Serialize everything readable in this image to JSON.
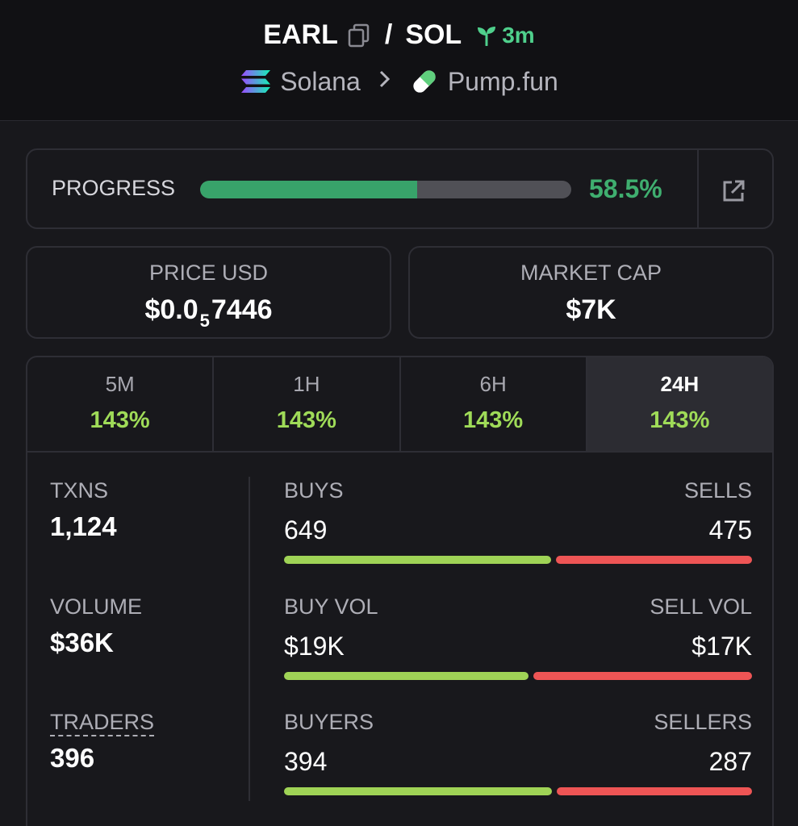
{
  "header": {
    "token": "EARL",
    "separator": "/",
    "quote": "SOL",
    "age": "3m",
    "chain": "Solana",
    "platform": "Pump.fun"
  },
  "progress": {
    "label": "PROGRESS",
    "value_text": "58.5%",
    "fraction": 0.585
  },
  "price": {
    "label": "PRICE USD",
    "prefix": "$0.0",
    "zeros": "5",
    "digits": "7446"
  },
  "market_cap": {
    "label": "MARKET CAP",
    "value": "$7K"
  },
  "tabs": [
    {
      "label": "5M",
      "value": "143%",
      "active": false
    },
    {
      "label": "1H",
      "value": "143%",
      "active": false
    },
    {
      "label": "6H",
      "value": "143%",
      "active": false
    },
    {
      "label": "24H",
      "value": "143%",
      "active": true
    }
  ],
  "stats": {
    "txns": {
      "label": "TXNS",
      "value": "1,124"
    },
    "volume": {
      "label": "VOLUME",
      "value": "$36K"
    },
    "traders": {
      "label": "TRADERS",
      "value": "396"
    }
  },
  "pairs": [
    {
      "left_label": "BUYS",
      "right_label": "SELLS",
      "left_value": "649",
      "right_value": "475",
      "buy_fraction": 0.577
    },
    {
      "left_label": "BUY VOL",
      "right_label": "SELL VOL",
      "left_value": "$19K",
      "right_value": "$17K",
      "buy_fraction": 0.528
    },
    {
      "left_label": "BUYERS",
      "right_label": "SELLERS",
      "left_value": "394",
      "right_value": "287",
      "buy_fraction": 0.579
    }
  ],
  "colors": {
    "accent_green": "#3fae6f",
    "change_green": "#9fdb58",
    "buy_bar": "#9fd356",
    "sell_bar": "#ee5555"
  },
  "icons": [
    "copy-icon",
    "sprout-icon",
    "solana-icon",
    "chevron-right-icon",
    "pill-icon",
    "external-link-icon"
  ]
}
